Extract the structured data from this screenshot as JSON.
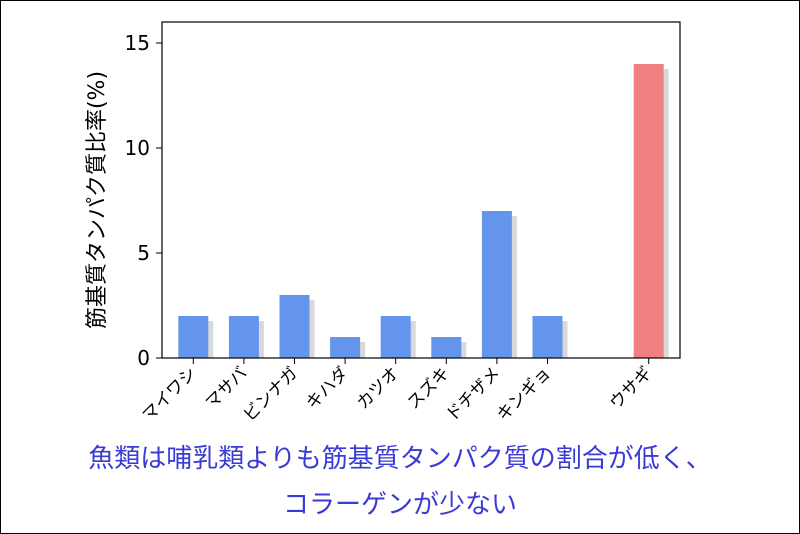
{
  "chart_data": {
    "type": "bar",
    "categories": [
      "マイワシ",
      "マサバ",
      "ビンナガ",
      "キハダ",
      "カツオ",
      "スズキ",
      "ドチザメ",
      "キンギョ",
      "",
      "ウサギ"
    ],
    "values": [
      2,
      2,
      3,
      1,
      2,
      1,
      7,
      2,
      null,
      14
    ],
    "ylabel": "筋基質タンパク質比率(%)",
    "xlabel": "",
    "ylim": [
      0,
      16
    ],
    "yticks": [
      0,
      5,
      10,
      15
    ],
    "grid": false,
    "colors": {
      "fish": "#6495ed",
      "highlight": "#f08080",
      "shadow": "#d9d9d9"
    },
    "highlight_index": 9
  },
  "caption": {
    "line1": "魚類は哺乳類よりも筋基質タンパク質の割合が低く、",
    "line2": "コラーゲンが少ない"
  }
}
